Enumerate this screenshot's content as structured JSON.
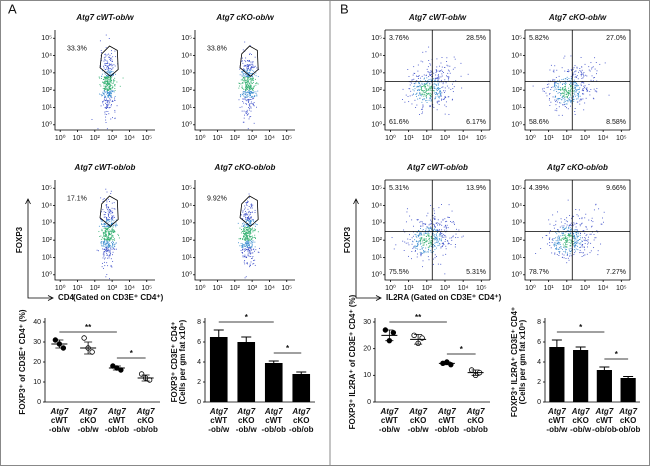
{
  "figure": {
    "panels": [
      {
        "label": "A",
        "y_axis": "FOXP3",
        "x_axis": "CD4",
        "gating": "(Gated on CD3E⁺ CD4⁺)"
      },
      {
        "label": "B",
        "y_axis": "FOXP3",
        "x_axis": "IL2RA",
        "gating": "(Gated on CD3E⁺ CD4⁺)"
      }
    ]
  },
  "chart_data": [
    {
      "type": "flow",
      "gate": "polygon",
      "title": "Atg7 cWT-ob/w",
      "values": [
        33.3
      ],
      "value_labels": [
        "33.3%"
      ],
      "xlim": [
        0.5,
        300000
      ],
      "ylim": [
        0.5,
        300000
      ],
      "log_scale": true,
      "xticks": [
        {
          "value": 1,
          "label": "10⁰"
        },
        {
          "value": 10,
          "label": "10¹"
        },
        {
          "value": 100,
          "label": "10²"
        },
        {
          "value": 1000,
          "label": "10³"
        },
        {
          "value": 10000,
          "label": "10⁴"
        },
        {
          "value": 100000,
          "label": "10⁵"
        }
      ],
      "yticks": [
        {
          "value": 1,
          "label": "10⁰"
        },
        {
          "value": 10,
          "label": "10¹"
        },
        {
          "value": 100,
          "label": "10²"
        },
        {
          "value": 1000,
          "label": "10³"
        },
        {
          "value": 10000,
          "label": "10⁴"
        },
        {
          "value": 100000,
          "label": "10⁵"
        }
      ]
    },
    {
      "type": "flow",
      "gate": "polygon",
      "title": "Atg7 cKO-ob/w",
      "values": [
        33.8
      ],
      "value_labels": [
        "33.8%"
      ],
      "xlim": [
        0.5,
        300000
      ],
      "ylim": [
        0.5,
        300000
      ],
      "log_scale": true,
      "xticks": [
        {
          "value": 1,
          "label": "10⁰"
        },
        {
          "value": 10,
          "label": "10¹"
        },
        {
          "value": 100,
          "label": "10²"
        },
        {
          "value": 1000,
          "label": "10³"
        },
        {
          "value": 10000,
          "label": "10⁴"
        },
        {
          "value": 100000,
          "label": "10⁵"
        }
      ],
      "yticks": [
        {
          "value": 1,
          "label": "10⁰"
        },
        {
          "value": 10,
          "label": "10¹"
        },
        {
          "value": 100,
          "label": "10²"
        },
        {
          "value": 1000,
          "label": "10³"
        },
        {
          "value": 10000,
          "label": "10⁴"
        },
        {
          "value": 100000,
          "label": "10⁵"
        }
      ]
    },
    {
      "type": "flow",
      "gate": "polygon",
      "title": "Atg7 cWT-ob/ob",
      "values": [
        17.1
      ],
      "value_labels": [
        "17.1%"
      ],
      "xlim": [
        0.5,
        300000
      ],
      "ylim": [
        0.5,
        300000
      ],
      "log_scale": true,
      "xticks": [
        {
          "value": 1,
          "label": "10⁰"
        },
        {
          "value": 10,
          "label": "10¹"
        },
        {
          "value": 100,
          "label": "10²"
        },
        {
          "value": 1000,
          "label": "10³"
        },
        {
          "value": 10000,
          "label": "10⁴"
        },
        {
          "value": 100000,
          "label": "10⁵"
        }
      ],
      "yticks": [
        {
          "value": 1,
          "label": "10⁰"
        },
        {
          "value": 10,
          "label": "10¹"
        },
        {
          "value": 100,
          "label": "10²"
        },
        {
          "value": 1000,
          "label": "10³"
        },
        {
          "value": 10000,
          "label": "10⁴"
        },
        {
          "value": 100000,
          "label": "10⁵"
        }
      ]
    },
    {
      "type": "flow",
      "gate": "polygon",
      "title": "Atg7 cKO-ob/ob",
      "values": [
        9.92
      ],
      "value_labels": [
        "9.92%"
      ],
      "xlim": [
        0.5,
        300000
      ],
      "ylim": [
        0.5,
        300000
      ],
      "log_scale": true,
      "xticks": [
        {
          "value": 1,
          "label": "10⁰"
        },
        {
          "value": 10,
          "label": "10¹"
        },
        {
          "value": 100,
          "label": "10²"
        },
        {
          "value": 1000,
          "label": "10³"
        },
        {
          "value": 10000,
          "label": "10⁴"
        },
        {
          "value": 100000,
          "label": "10⁵"
        }
      ],
      "yticks": [
        {
          "value": 1,
          "label": "10⁰"
        },
        {
          "value": 10,
          "label": "10¹"
        },
        {
          "value": 100,
          "label": "10²"
        },
        {
          "value": 1000,
          "label": "10³"
        },
        {
          "value": 10000,
          "label": "10⁴"
        },
        {
          "value": 100000,
          "label": "10⁵"
        }
      ]
    },
    {
      "type": "dot",
      "ylabel": "FOXP3⁺ of CD3E⁺ CD4⁺ (%)",
      "categories": [
        [
          "Atg7",
          "cWT",
          "-ob/w"
        ],
        [
          "Atg7",
          "cKO",
          "-ob/w"
        ],
        [
          "Atg7",
          "cWT",
          "-ob/ob"
        ],
        [
          "Atg7",
          "cKO",
          "-ob/ob"
        ]
      ],
      "values": [
        29,
        27,
        17,
        12
      ],
      "errors": [
        2,
        3,
        1,
        1.5
      ],
      "points": [
        [
          31,
          29,
          27
        ],
        [
          32,
          27,
          25
        ],
        [
          18,
          17,
          16
        ],
        [
          14,
          12,
          11
        ]
      ],
      "point_filled": [
        true,
        false,
        true,
        false
      ],
      "ylim": [
        0,
        40
      ],
      "yticks": [
        0,
        10,
        20,
        30,
        40
      ],
      "annotations": [
        "**",
        "*"
      ]
    },
    {
      "type": "bar",
      "ylabel": "FOXP3⁺ CD3E⁺ CD4⁺",
      "ylabel2": "(Cells per gm fat x10⁵)",
      "categories": [
        [
          "Atg7",
          "cWT",
          "-ob/w"
        ],
        [
          "Atg7",
          "cKO",
          "-ob/w"
        ],
        [
          "Atg7",
          "cWT",
          "-ob/ob"
        ],
        [
          "Atg7",
          "cKO",
          "-ob/ob"
        ]
      ],
      "values": [
        6.5,
        6.0,
        3.9,
        2.8
      ],
      "errors": [
        0.7,
        0.5,
        0.2,
        0.2
      ],
      "color": "#000000",
      "ylim": [
        0,
        8
      ],
      "yticks": [
        0,
        2,
        4,
        6,
        8
      ],
      "annotations": [
        "*",
        "*"
      ]
    },
    {
      "type": "flow",
      "gate": "quadrant",
      "title": "Atg7 cWT-ob/w",
      "values": [
        3.76,
        28.5,
        61.6,
        6.17
      ],
      "value_labels": [
        "3.76%",
        "28.5%",
        "61.6%",
        "6.17%"
      ],
      "xlim": [
        0.5,
        300000
      ],
      "ylim": [
        0.5,
        300000
      ],
      "log_scale": true,
      "xticks": [
        {
          "value": 1,
          "label": "10⁰"
        },
        {
          "value": 10,
          "label": "10¹"
        },
        {
          "value": 100,
          "label": "10²"
        },
        {
          "value": 1000,
          "label": "10³"
        },
        {
          "value": 10000,
          "label": "10⁴"
        },
        {
          "value": 100000,
          "label": "10⁵"
        }
      ],
      "yticks": [
        {
          "value": 1,
          "label": "10⁰"
        },
        {
          "value": 10,
          "label": "10¹"
        },
        {
          "value": 100,
          "label": "10²"
        },
        {
          "value": 1000,
          "label": "10³"
        },
        {
          "value": 10000,
          "label": "10⁴"
        },
        {
          "value": 100000,
          "label": "10⁵"
        }
      ]
    },
    {
      "type": "flow",
      "gate": "quadrant",
      "title": "Atg7 cKO-ob/w",
      "values": [
        5.82,
        27.0,
        58.6,
        8.58
      ],
      "value_labels": [
        "5.82%",
        "27.0%",
        "58.6%",
        "8.58%"
      ],
      "xlim": [
        0.5,
        300000
      ],
      "ylim": [
        0.5,
        300000
      ],
      "log_scale": true,
      "xticks": [
        {
          "value": 1,
          "label": "10⁰"
        },
        {
          "value": 10,
          "label": "10¹"
        },
        {
          "value": 100,
          "label": "10²"
        },
        {
          "value": 1000,
          "label": "10³"
        },
        {
          "value": 10000,
          "label": "10⁴"
        },
        {
          "value": 100000,
          "label": "10⁵"
        }
      ],
      "yticks": [
        {
          "value": 1,
          "label": "10⁰"
        },
        {
          "value": 10,
          "label": "10¹"
        },
        {
          "value": 100,
          "label": "10²"
        },
        {
          "value": 1000,
          "label": "10³"
        },
        {
          "value": 10000,
          "label": "10⁴"
        },
        {
          "value": 100000,
          "label": "10⁵"
        }
      ]
    },
    {
      "type": "flow",
      "gate": "quadrant",
      "title": "Atg7 cWT-ob/ob",
      "values": [
        5.31,
        13.9,
        75.5,
        5.31
      ],
      "value_labels": [
        "5.31%",
        "13.9%",
        "75.5%",
        "5.31%"
      ],
      "xlim": [
        0.5,
        300000
      ],
      "ylim": [
        0.5,
        300000
      ],
      "log_scale": true,
      "xticks": [
        {
          "value": 1,
          "label": "10⁰"
        },
        {
          "value": 10,
          "label": "10¹"
        },
        {
          "value": 100,
          "label": "10²"
        },
        {
          "value": 1000,
          "label": "10³"
        },
        {
          "value": 10000,
          "label": "10⁴"
        },
        {
          "value": 100000,
          "label": "10⁵"
        }
      ],
      "yticks": [
        {
          "value": 1,
          "label": "10⁰"
        },
        {
          "value": 10,
          "label": "10¹"
        },
        {
          "value": 100,
          "label": "10²"
        },
        {
          "value": 1000,
          "label": "10³"
        },
        {
          "value": 10000,
          "label": "10⁴"
        },
        {
          "value": 100000,
          "label": "10⁵"
        }
      ]
    },
    {
      "type": "flow",
      "gate": "quadrant",
      "title": "Atg7 cKO-ob/ob",
      "values": [
        4.39,
        9.66,
        78.7,
        7.27
      ],
      "value_labels": [
        "4.39%",
        "9.66%",
        "78.7%",
        "7.27%"
      ],
      "xlim": [
        0.5,
        300000
      ],
      "ylim": [
        0.5,
        300000
      ],
      "log_scale": true,
      "xticks": [
        {
          "value": 1,
          "label": "10⁰"
        },
        {
          "value": 10,
          "label": "10¹"
        },
        {
          "value": 100,
          "label": "10²"
        },
        {
          "value": 1000,
          "label": "10³"
        },
        {
          "value": 10000,
          "label": "10⁴"
        },
        {
          "value": 100000,
          "label": "10⁵"
        }
      ],
      "yticks": [
        {
          "value": 1,
          "label": "10⁰"
        },
        {
          "value": 10,
          "label": "10¹"
        },
        {
          "value": 100,
          "label": "10²"
        },
        {
          "value": 1000,
          "label": "10³"
        },
        {
          "value": 10000,
          "label": "10⁴"
        },
        {
          "value": 100000,
          "label": "10⁵"
        }
      ]
    },
    {
      "type": "dot",
      "ylabel": "FOXP3⁺ IL2RA⁺ of CD3E⁺ CD4⁺ (%)",
      "categories": [
        [
          "Atg7",
          "cWT",
          "-ob/w"
        ],
        [
          "Atg7",
          "cKO",
          "-ob/w"
        ],
        [
          "Atg7",
          "cWT",
          "-ob/ob"
        ],
        [
          "Atg7",
          "cKO",
          "-ob/ob"
        ]
      ],
      "values": [
        25,
        23.5,
        14.5,
        11
      ],
      "errors": [
        2,
        1.8,
        0.5,
        1
      ],
      "points": [
        [
          27,
          23,
          26
        ],
        [
          25,
          22,
          24
        ],
        [
          14.5,
          15,
          14
        ],
        [
          12,
          10,
          11
        ]
      ],
      "point_filled": [
        true,
        false,
        true,
        false
      ],
      "ylim": [
        0,
        30
      ],
      "yticks": [
        0,
        10,
        20,
        30
      ],
      "annotations": [
        "**",
        "*"
      ]
    },
    {
      "type": "bar",
      "ylabel": "FOXP3⁺ IL2RA⁺ CD3E⁺ CD4⁺",
      "ylabel2": "(Cells per gm fat x10⁵)",
      "categories": [
        [
          "Atg7",
          "cWT",
          "-ob/w"
        ],
        [
          "Atg7",
          "cKO",
          "-ob/w"
        ],
        [
          "Atg7",
          "cWT",
          "-ob/ob"
        ],
        [
          "Atg7",
          "cKO",
          "-ob/ob"
        ]
      ],
      "values": [
        5.5,
        5.2,
        3.2,
        2.4
      ],
      "errors": [
        0.7,
        0.3,
        0.3,
        0.15
      ],
      "color": "#000000",
      "ylim": [
        0,
        8
      ],
      "yticks": [
        0,
        2,
        4,
        6,
        8
      ],
      "annotations": [
        "*",
        "*"
      ]
    }
  ]
}
